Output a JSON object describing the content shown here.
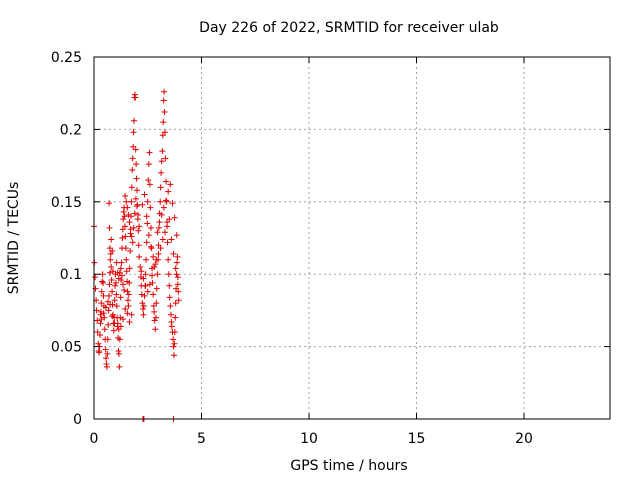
{
  "chart_data": {
    "type": "scatter",
    "title": "Day 226 of 2022, SRMTID for receiver ulab",
    "xlabel": "GPS time / hours",
    "ylabel": "SRMTID / TECUs",
    "xlim": [
      0,
      24
    ],
    "ylim": [
      0,
      0.25
    ],
    "x_ticks": [
      0,
      5,
      10,
      15,
      20
    ],
    "y_ticks": [
      0,
      0.05,
      0.1,
      0.15,
      0.2,
      0.25
    ],
    "x_tick_labels": [
      "0",
      "5",
      "10",
      "15",
      "20"
    ],
    "y_tick_labels": [
      "0",
      "0.05",
      "0.1",
      "0.15",
      "0.2",
      "0.25"
    ],
    "grid": true,
    "marker": "+",
    "series": [
      {
        "name": "SRMTID",
        "color": "#e00000",
        "points": [
          [
            0.0,
            0.133
          ],
          [
            0.02,
            0.108
          ],
          [
            0.05,
            0.098
          ],
          [
            0.07,
            0.09
          ],
          [
            0.1,
            0.082
          ],
          [
            0.12,
            0.075
          ],
          [
            0.15,
            0.068
          ],
          [
            0.17,
            0.06
          ],
          [
            0.2,
            0.052
          ],
          [
            0.22,
            0.047
          ],
          [
            0.24,
            0.046
          ],
          [
            0.26,
            0.05
          ],
          [
            0.28,
            0.058
          ],
          [
            0.3,
            0.066
          ],
          [
            0.32,
            0.074
          ],
          [
            0.34,
            0.08
          ],
          [
            0.36,
            0.088
          ],
          [
            0.38,
            0.095
          ],
          [
            0.4,
            0.1
          ],
          [
            0.42,
            0.094
          ],
          [
            0.44,
            0.085
          ],
          [
            0.46,
            0.078
          ],
          [
            0.48,
            0.07
          ],
          [
            0.5,
            0.062
          ],
          [
            0.52,
            0.055
          ],
          [
            0.54,
            0.048
          ],
          [
            0.56,
            0.042
          ],
          [
            0.58,
            0.038
          ],
          [
            0.6,
            0.036
          ],
          [
            0.62,
            0.045
          ],
          [
            0.64,
            0.055
          ],
          [
            0.66,
            0.065
          ],
          [
            0.68,
            0.075
          ],
          [
            0.7,
            0.085
          ],
          [
            0.72,
            0.093
          ],
          [
            0.74,
            0.101
          ],
          [
            0.76,
            0.11
          ],
          [
            0.78,
            0.114
          ],
          [
            0.8,
            0.105
          ],
          [
            0.82,
            0.096
          ],
          [
            0.84,
            0.088
          ],
          [
            0.86,
            0.079
          ],
          [
            0.88,
            0.072
          ],
          [
            0.9,
            0.066
          ],
          [
            0.92,
            0.061
          ],
          [
            0.94,
            0.07
          ],
          [
            0.96,
            0.082
          ],
          [
            0.98,
            0.092
          ],
          [
            0.3,
            0.072
          ],
          [
            0.35,
            0.069
          ],
          [
            0.45,
            0.073
          ],
          [
            0.55,
            0.077
          ],
          [
            0.65,
            0.081
          ],
          [
            0.75,
            0.079
          ],
          [
            0.85,
            0.071
          ],
          [
            0.95,
            0.066
          ],
          [
            0.7,
            0.149
          ],
          [
            0.72,
            0.132
          ],
          [
            0.74,
            0.118
          ],
          [
            0.8,
            0.124
          ],
          [
            0.85,
            0.116
          ],
          [
            0.88,
            0.102
          ],
          [
            1.0,
            0.1
          ],
          [
            1.02,
            0.094
          ],
          [
            1.04,
            0.086
          ],
          [
            1.06,
            0.078
          ],
          [
            1.08,
            0.07
          ],
          [
            1.1,
            0.064
          ],
          [
            1.12,
            0.056
          ],
          [
            1.14,
            0.047
          ],
          [
            1.16,
            0.045
          ],
          [
            1.18,
            0.036
          ],
          [
            1.2,
            0.055
          ],
          [
            1.22,
            0.07
          ],
          [
            1.24,
            0.084
          ],
          [
            1.26,
            0.096
          ],
          [
            1.28,
            0.108
          ],
          [
            1.3,
            0.118
          ],
          [
            1.32,
            0.125
          ],
          [
            1.34,
            0.131
          ],
          [
            1.36,
            0.138
          ],
          [
            1.38,
            0.143
          ],
          [
            1.4,
            0.146
          ],
          [
            1.42,
            0.14
          ],
          [
            1.44,
            0.133
          ],
          [
            1.46,
            0.126
          ],
          [
            1.48,
            0.118
          ],
          [
            1.5,
            0.11
          ],
          [
            1.52,
            0.102
          ],
          [
            1.54,
            0.095
          ],
          [
            1.56,
            0.088
          ],
          [
            1.58,
            0.082
          ],
          [
            1.6,
            0.078
          ],
          [
            1.62,
            0.086
          ],
          [
            1.64,
            0.094
          ],
          [
            1.66,
            0.104
          ],
          [
            1.68,
            0.116
          ],
          [
            1.7,
            0.128
          ],
          [
            1.72,
            0.14
          ],
          [
            1.74,
            0.15
          ],
          [
            1.76,
            0.16
          ],
          [
            1.78,
            0.172
          ],
          [
            1.8,
            0.18
          ],
          [
            1.82,
            0.188
          ],
          [
            1.84,
            0.198
          ],
          [
            1.86,
            0.206
          ],
          [
            1.88,
            0.222
          ],
          [
            1.9,
            0.224
          ],
          [
            1.92,
            0.222
          ],
          [
            1.94,
            0.186
          ],
          [
            1.96,
            0.176
          ],
          [
            1.98,
            0.166
          ],
          [
            2.0,
            0.158
          ],
          [
            2.02,
            0.148
          ],
          [
            2.04,
            0.138
          ],
          [
            2.06,
            0.13
          ],
          [
            2.08,
            0.12
          ],
          [
            2.1,
            0.112
          ],
          [
            1.05,
            0.108
          ],
          [
            1.1,
            0.101
          ],
          [
            1.15,
            0.097
          ],
          [
            1.2,
            0.101
          ],
          [
            1.25,
            0.104
          ],
          [
            1.3,
            0.099
          ],
          [
            1.35,
            0.093
          ],
          [
            1.4,
            0.089
          ],
          [
            1.45,
            0.154
          ],
          [
            1.5,
            0.15
          ],
          [
            1.55,
            0.146
          ],
          [
            1.6,
            0.141
          ],
          [
            1.65,
            0.136
          ],
          [
            1.7,
            0.131
          ],
          [
            1.75,
            0.126
          ],
          [
            1.8,
            0.122
          ],
          [
            1.85,
            0.132
          ],
          [
            1.9,
            0.142
          ],
          [
            1.95,
            0.152
          ],
          [
            2.0,
            0.147
          ],
          [
            2.05,
            0.141
          ],
          [
            2.1,
            0.133
          ],
          [
            1.1,
            0.066
          ],
          [
            1.15,
            0.062
          ],
          [
            1.25,
            0.064
          ],
          [
            1.35,
            0.069
          ],
          [
            1.45,
            0.076
          ],
          [
            1.55,
            0.073
          ],
          [
            1.65,
            0.067
          ],
          [
            1.75,
            0.072
          ],
          [
            2.15,
            0.105
          ],
          [
            2.18,
            0.098
          ],
          [
            2.2,
            0.092
          ],
          [
            2.22,
            0.086
          ],
          [
            2.25,
            0.08
          ],
          [
            2.28,
            0.076
          ],
          [
            2.3,
            0.072
          ],
          [
            2.32,
            0.078
          ],
          [
            2.35,
            0.085
          ],
          [
            2.38,
            0.092
          ],
          [
            2.4,
            0.1
          ],
          [
            2.42,
            0.11
          ],
          [
            2.45,
            0.122
          ],
          [
            2.48,
            0.135
          ],
          [
            2.5,
            0.15
          ],
          [
            2.52,
            0.165
          ],
          [
            2.55,
            0.176
          ],
          [
            2.58,
            0.184
          ],
          [
            2.6,
            0.162
          ],
          [
            2.62,
            0.146
          ],
          [
            2.65,
            0.132
          ],
          [
            2.68,
            0.118
          ],
          [
            2.7,
            0.104
          ],
          [
            2.72,
            0.094
          ],
          [
            2.75,
            0.086
          ],
          [
            2.78,
            0.078
          ],
          [
            2.8,
            0.074
          ],
          [
            2.82,
            0.068
          ],
          [
            2.85,
            0.062
          ],
          [
            2.88,
            0.07
          ],
          [
            2.9,
            0.08
          ],
          [
            2.92,
            0.09
          ],
          [
            2.95,
            0.1
          ],
          [
            2.98,
            0.11
          ],
          [
            3.0,
            0.12
          ],
          [
            3.02,
            0.132
          ],
          [
            3.05,
            0.142
          ],
          [
            3.08,
            0.15
          ],
          [
            3.1,
            0.16
          ],
          [
            3.12,
            0.17
          ],
          [
            3.15,
            0.178
          ],
          [
            3.18,
            0.185
          ],
          [
            3.2,
            0.196
          ],
          [
            3.22,
            0.205
          ],
          [
            3.24,
            0.22
          ],
          [
            3.26,
            0.226
          ],
          [
            3.28,
            0.212
          ],
          [
            3.3,
            0.198
          ],
          [
            3.32,
            0.18
          ],
          [
            3.35,
            0.164
          ],
          [
            3.38,
            0.15
          ],
          [
            3.4,
            0.136
          ],
          [
            3.42,
            0.122
          ],
          [
            3.45,
            0.11
          ],
          [
            3.48,
            0.1
          ],
          [
            3.5,
            0.092
          ],
          [
            3.52,
            0.084
          ],
          [
            3.55,
            0.078
          ],
          [
            3.58,
            0.072
          ],
          [
            3.6,
            0.067
          ],
          [
            3.62,
            0.064
          ],
          [
            3.65,
            0.06
          ],
          [
            3.68,
            0.055
          ],
          [
            3.7,
            0.05
          ],
          [
            3.72,
            0.044
          ],
          [
            3.74,
            0.052
          ],
          [
            3.76,
            0.06
          ],
          [
            3.78,
            0.07
          ],
          [
            3.8,
            0.08
          ],
          [
            3.82,
            0.09
          ],
          [
            3.84,
            0.1
          ],
          [
            3.86,
            0.108
          ],
          [
            3.88,
            0.112
          ],
          [
            3.9,
            0.098
          ],
          [
            3.92,
            0.088
          ],
          [
            3.94,
            0.082
          ],
          [
            2.2,
            0.102
          ],
          [
            2.3,
            0.097
          ],
          [
            2.4,
            0.092
          ],
          [
            2.5,
            0.088
          ],
          [
            2.6,
            0.093
          ],
          [
            2.7,
            0.099
          ],
          [
            2.8,
            0.105
          ],
          [
            2.9,
            0.11
          ],
          [
            3.0,
            0.114
          ],
          [
            3.1,
            0.118
          ],
          [
            3.2,
            0.124
          ],
          [
            3.3,
            0.129
          ],
          [
            3.4,
            0.133
          ],
          [
            3.5,
            0.138
          ],
          [
            3.6,
            0.124
          ],
          [
            3.7,
            0.114
          ],
          [
            3.8,
            0.104
          ],
          [
            3.9,
            0.093
          ],
          [
            2.25,
            0.148
          ],
          [
            2.35,
            0.155
          ],
          [
            2.45,
            0.14
          ],
          [
            2.55,
            0.127
          ],
          [
            2.65,
            0.119
          ],
          [
            2.75,
            0.112
          ],
          [
            2.85,
            0.107
          ],
          [
            2.95,
            0.129
          ],
          [
            3.05,
            0.136
          ],
          [
            3.15,
            0.141
          ],
          [
            3.25,
            0.146
          ],
          [
            3.35,
            0.151
          ],
          [
            3.45,
            0.157
          ],
          [
            3.55,
            0.162
          ],
          [
            3.65,
            0.149
          ],
          [
            3.75,
            0.139
          ],
          [
            3.85,
            0.127
          ],
          [
            2.28,
            0.0
          ],
          [
            2.32,
            0.0
          ],
          [
            3.7,
            0.0
          ]
        ]
      }
    ]
  }
}
